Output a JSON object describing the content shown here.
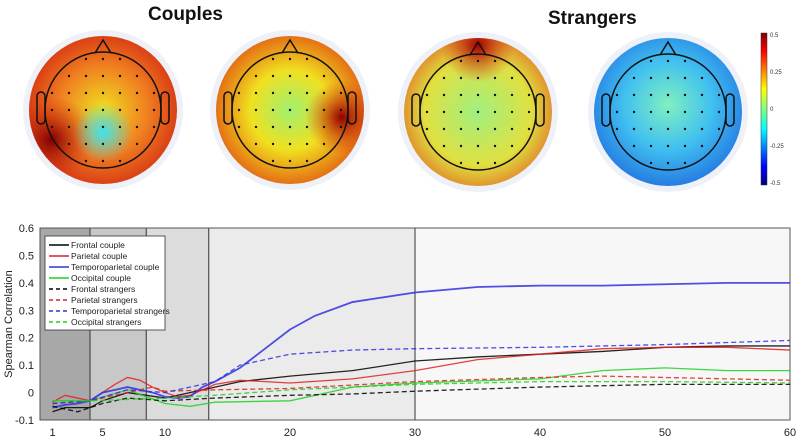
{
  "titles": {
    "left": "Couples",
    "right": "Strangers"
  },
  "colorbar": {
    "ticks": [
      "0.5",
      "0.25",
      "0",
      "-0.25",
      "-0.5"
    ],
    "range": [
      -0.5,
      0.5
    ]
  },
  "chart_data": {
    "type": "line",
    "ylabel": "Spearman Correlation",
    "xlabel": "",
    "xlim": [
      0,
      60
    ],
    "ylim": [
      -0.1,
      0.6
    ],
    "xticks": [
      1,
      5,
      10,
      20,
      30,
      40,
      50,
      60
    ],
    "yticks": [
      -0.1,
      0,
      0.1,
      0.2,
      0.3,
      0.4,
      0.5,
      0.6
    ],
    "shaded_band_boundaries": [
      4,
      8.5,
      13.5,
      30
    ],
    "legend_position": "top-left",
    "series": [
      {
        "name": "Frontal couple",
        "color": "#000000",
        "dash": false,
        "x": [
          1,
          2,
          3,
          4,
          5,
          7,
          10,
          13,
          16,
          20,
          25,
          30,
          35,
          40,
          45,
          50,
          55,
          60
        ],
        "y": [
          -0.07,
          -0.055,
          -0.055,
          -0.055,
          -0.03,
          0,
          -0.02,
          0.01,
          0.04,
          0.06,
          0.08,
          0.115,
          0.13,
          0.14,
          0.15,
          0.165,
          0.17,
          0.17
        ]
      },
      {
        "name": "Parietal couple",
        "color": "#e02020",
        "dash": false,
        "x": [
          1,
          2,
          3,
          4,
          5,
          6,
          7,
          8,
          9,
          10,
          11,
          12,
          13,
          14,
          16,
          18,
          20,
          25,
          30,
          35,
          40,
          45,
          50,
          55,
          60
        ],
        "y": [
          -0.035,
          -0.01,
          -0.02,
          -0.03,
          0,
          0.03,
          0.055,
          0.045,
          0.02,
          0,
          -0.015,
          -0.01,
          0.01,
          0.03,
          0.045,
          0.04,
          0.035,
          0.05,
          0.08,
          0.12,
          0.14,
          0.16,
          0.165,
          0.165,
          0.155
        ]
      },
      {
        "name": "Temporoparietal couple",
        "color": "#3030e0",
        "dash": false,
        "x": [
          1,
          2,
          3,
          4,
          5,
          6,
          7,
          8,
          9,
          10,
          11,
          12,
          13,
          14,
          16,
          18,
          20,
          22,
          25,
          30,
          35,
          40,
          45,
          50,
          55,
          60
        ],
        "y": [
          -0.055,
          -0.045,
          -0.04,
          -0.03,
          0,
          0.01,
          0.02,
          0.01,
          0,
          -0.015,
          -0.02,
          -0.015,
          0.02,
          0.04,
          0.09,
          0.16,
          0.23,
          0.28,
          0.33,
          0.365,
          0.385,
          0.39,
          0.39,
          0.395,
          0.4,
          0.4
        ]
      },
      {
        "name": "Occipital couple",
        "color": "#20d020",
        "dash": false,
        "x": [
          1,
          4,
          7,
          10,
          12,
          14,
          20,
          25,
          30,
          40,
          45,
          50,
          55,
          60
        ],
        "y": [
          -0.03,
          -0.03,
          0.01,
          -0.04,
          -0.05,
          -0.035,
          -0.03,
          0.02,
          0.035,
          0.05,
          0.08,
          0.09,
          0.08,
          0.08
        ]
      },
      {
        "name": "Frontal strangers",
        "color": "#000000",
        "dash": true,
        "x": [
          1,
          3,
          5,
          7,
          10,
          14,
          20,
          25,
          30,
          40,
          50,
          60
        ],
        "y": [
          -0.05,
          -0.07,
          -0.04,
          -0.02,
          -0.03,
          -0.02,
          -0.01,
          -0.005,
          0.005,
          0.02,
          0.03,
          0.03
        ]
      },
      {
        "name": "Parietal strangers",
        "color": "#e02020",
        "dash": true,
        "x": [
          1,
          4,
          7,
          9,
          10,
          14,
          20,
          30,
          40,
          45,
          50,
          60
        ],
        "y": [
          -0.04,
          -0.03,
          0,
          0.02,
          0.005,
          0.01,
          0.015,
          0.04,
          0.055,
          0.06,
          0.055,
          0.045
        ]
      },
      {
        "name": "Temporoparietal strangers",
        "color": "#3030e0",
        "dash": true,
        "x": [
          1,
          4,
          7,
          10,
          14,
          16,
          20,
          25,
          30,
          40,
          50,
          60
        ],
        "y": [
          -0.04,
          -0.03,
          0.01,
          0,
          0.04,
          0.1,
          0.14,
          0.155,
          0.16,
          0.165,
          0.175,
          0.19
        ]
      },
      {
        "name": "Occipital strangers",
        "color": "#20d020",
        "dash": true,
        "x": [
          1,
          4,
          7,
          10,
          14,
          20,
          30,
          40,
          50,
          60
        ],
        "y": [
          -0.03,
          -0.03,
          -0.025,
          -0.02,
          -0.01,
          0.01,
          0.03,
          0.04,
          0.04,
          0.035
        ]
      }
    ]
  }
}
